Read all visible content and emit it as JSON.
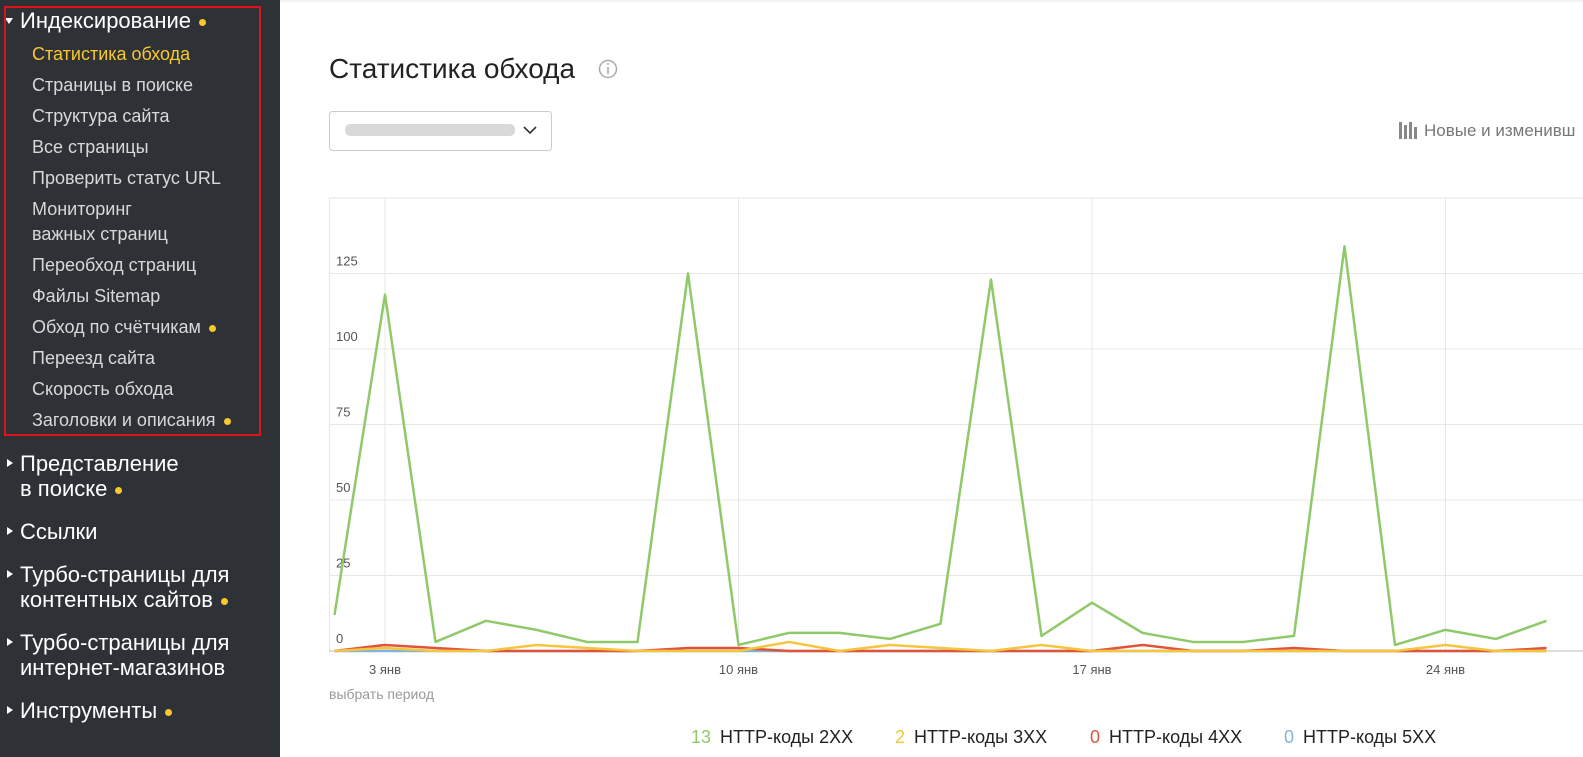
{
  "sidebar": {
    "sections": [
      {
        "lines": [
          "Индексирование"
        ],
        "dot": true,
        "expanded": true,
        "items": [
          {
            "lines": [
              "Статистика обхода"
            ],
            "active": true
          },
          {
            "lines": [
              "Страницы в поиске"
            ]
          },
          {
            "lines": [
              "Структура сайта"
            ]
          },
          {
            "lines": [
              "Все страницы"
            ]
          },
          {
            "lines": [
              "Проверить статус URL"
            ]
          },
          {
            "lines": [
              "Мониторинг",
              "важных страниц"
            ]
          },
          {
            "lines": [
              "Переобход страниц"
            ]
          },
          {
            "lines": [
              "Файлы Sitemap"
            ]
          },
          {
            "lines": [
              "Обход по счётчикам"
            ],
            "dot": true
          },
          {
            "lines": [
              "Переезд сайта"
            ]
          },
          {
            "lines": [
              "Скорость обхода"
            ]
          },
          {
            "lines": [
              "Заголовки и описания"
            ],
            "dot": true
          }
        ]
      },
      {
        "lines": [
          "Представление",
          "в поиске"
        ],
        "dot": true
      },
      {
        "lines": [
          "Ссылки"
        ]
      },
      {
        "lines": [
          "Турбо-страницы для",
          "контентных сайтов"
        ],
        "dot": true
      },
      {
        "lines": [
          "Турбо-страницы для",
          "интернет-магазинов"
        ]
      },
      {
        "lines": [
          "Инструменты"
        ],
        "dot": true
      }
    ]
  },
  "header": {
    "title": "Статистика обхода",
    "toolbar_link": "Новые и изменивш"
  },
  "chart_data": {
    "type": "line",
    "period_link": "выбрать период",
    "categories": [
      null,
      "3 янв",
      null,
      null,
      null,
      null,
      null,
      null,
      "10 янв",
      null,
      null,
      null,
      null,
      null,
      null,
      "17 янв",
      null,
      null,
      null,
      null,
      null,
      null,
      "24 янв",
      null,
      null
    ],
    "series": [
      {
        "name": "HTTP-коды 2XX",
        "total": 13,
        "color": "#8fc96a",
        "values": [
          12,
          118,
          3,
          10,
          7,
          3,
          3,
          125,
          2,
          6,
          6,
          4,
          9,
          123,
          5,
          16,
          6,
          3,
          3,
          5,
          134,
          2,
          7,
          4,
          10
        ]
      },
      {
        "name": "HTTP-коды 3XX",
        "total": 2,
        "color": "#f5c63c",
        "values": [
          0,
          1,
          0,
          0,
          2,
          1,
          0,
          0,
          0,
          3,
          0,
          2,
          1,
          0,
          2,
          0,
          0,
          0,
          0,
          0,
          0,
          0,
          2,
          0,
          0
        ]
      },
      {
        "name": "HTTP-коды 4XX",
        "total": 0,
        "color": "#e0553a",
        "values": [
          0,
          2,
          1,
          0,
          0,
          0,
          0,
          1,
          1,
          0,
          0,
          0,
          0,
          0,
          0,
          0,
          2,
          0,
          0,
          1,
          0,
          0,
          0,
          0,
          1
        ]
      },
      {
        "name": "HTTP-коды 5XX",
        "total": 0,
        "color": "#82b3da",
        "values": [
          0,
          0,
          0,
          0,
          0,
          0,
          0,
          0,
          0,
          0,
          0,
          0,
          0,
          0,
          0,
          0,
          0,
          0,
          0,
          0,
          0,
          0,
          0,
          0,
          0
        ]
      }
    ],
    "ylim": [
      0,
      150
    ],
    "yticks": [
      0,
      25,
      50,
      75,
      100,
      125
    ],
    "grid": true
  }
}
